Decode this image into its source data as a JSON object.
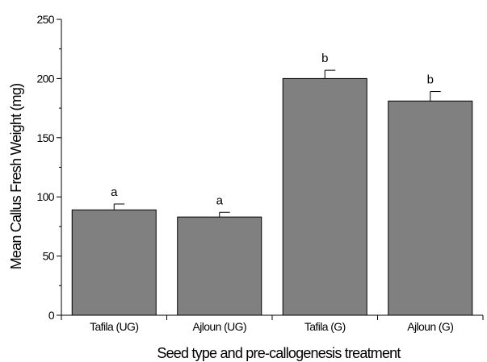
{
  "chart_data": {
    "type": "bar",
    "categories": [
      "Tafila (UG)",
      "Ajloun (UG)",
      "Tafila (G)",
      "Ajloun (G)"
    ],
    "values": [
      89,
      83,
      200,
      181
    ],
    "error": [
      5,
      4,
      7,
      8
    ],
    "significance_labels": [
      "a",
      "a",
      "b",
      "b"
    ],
    "xlabel": "Seed type and pre-callogenesis treatment",
    "ylabel": "Mean Callus Fresh Weight (mg)",
    "ylim": [
      0,
      250
    ],
    "yticks": [
      0,
      50,
      100,
      150,
      200,
      250
    ],
    "grid": false,
    "bar_color": "#808080",
    "bar_edge_color": "#000000"
  }
}
